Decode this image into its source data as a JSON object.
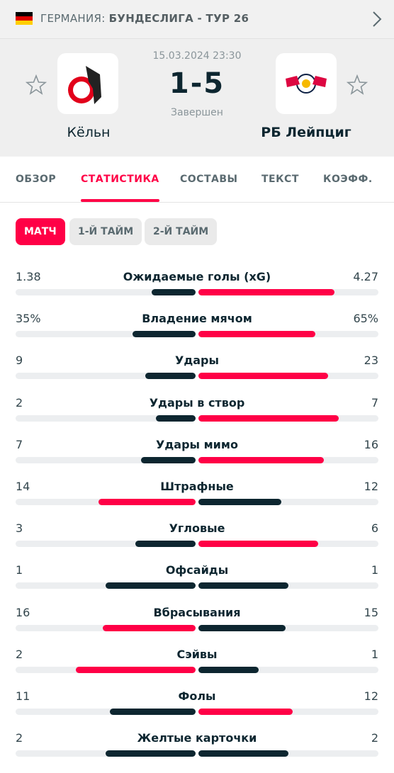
{
  "header": {
    "country": "ГЕРМАНИЯ:",
    "league": "БУНДЕСЛИГА - ТУР 26"
  },
  "match": {
    "datetime": "15.03.2024 23:30",
    "home": "Кёльн",
    "away": "РБ Лейпциг",
    "score": "1-5",
    "status": "Завершен"
  },
  "tabs": [
    "ОБЗОР",
    "СТАТИСТИКА",
    "СОСТАВЫ",
    "ТЕКСТ",
    "КОЭФФ."
  ],
  "active_tab": 1,
  "periods": [
    "МАТЧ",
    "1-Й ТАЙМ",
    "2-Й ТАЙМ"
  ],
  "active_period": 0,
  "stats": [
    {
      "name": "Ожидаемые голы (xG)",
      "home": 1.38,
      "away": 4.27
    },
    {
      "name": "Владение мячом",
      "home": "35%",
      "away": "65%"
    },
    {
      "name": "Удары",
      "home": 9,
      "away": 23
    },
    {
      "name": "Удары в створ",
      "home": 2,
      "away": 7
    },
    {
      "name": "Удары мимо",
      "home": 7,
      "away": 16
    },
    {
      "name": "Штрафные",
      "home": 14,
      "away": 12
    },
    {
      "name": "Угловые",
      "home": 3,
      "away": 6
    },
    {
      "name": "Офсайды",
      "home": 1,
      "away": 1
    },
    {
      "name": "Вбрасывания",
      "home": 16,
      "away": 15
    },
    {
      "name": "Сэйвы",
      "home": 2,
      "away": 1
    },
    {
      "name": "Фолы",
      "home": 11,
      "away": 12
    },
    {
      "name": "Желтые карточки",
      "home": 2,
      "away": 2
    }
  ]
}
